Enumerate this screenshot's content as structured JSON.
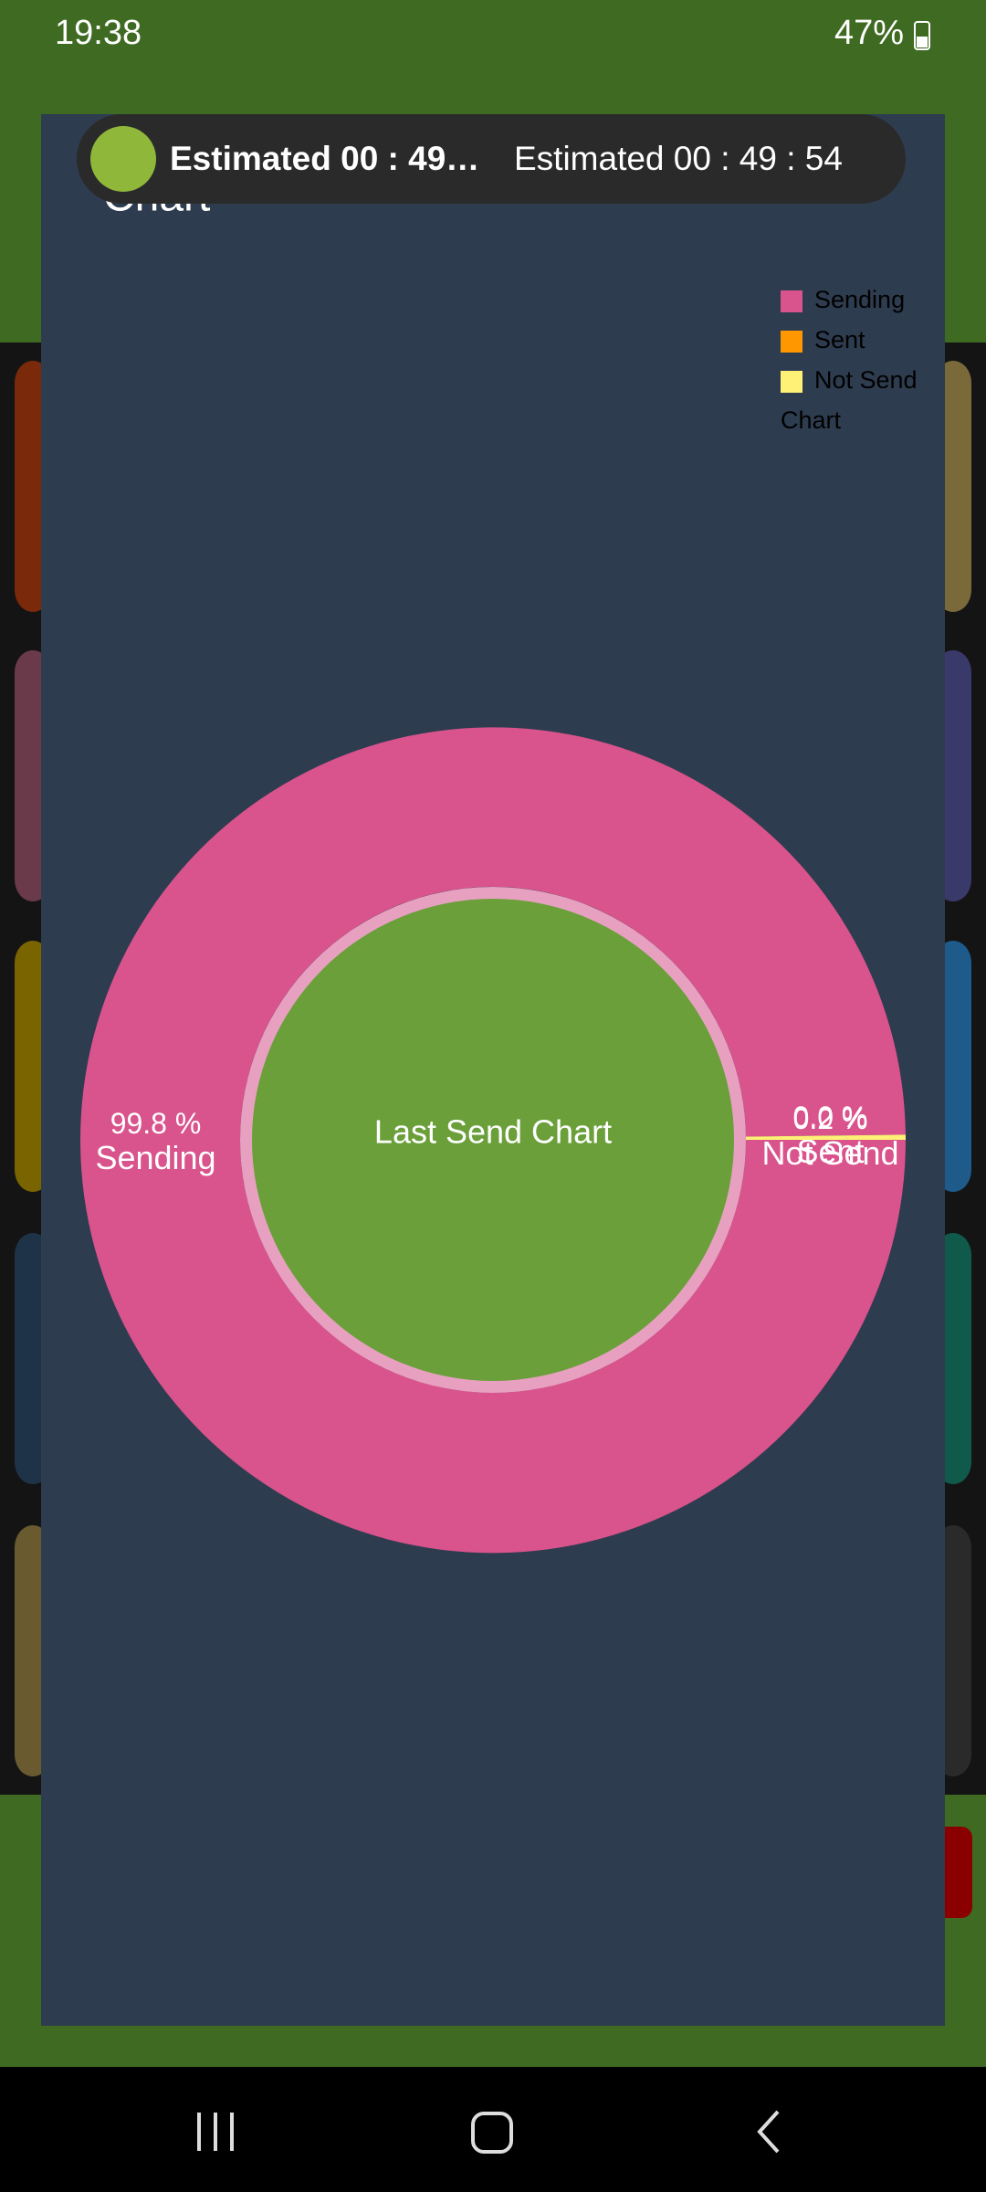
{
  "status_bar": {
    "time": "19:38",
    "battery": "47%"
  },
  "notification": {
    "title": "Estimated 00 : 49…",
    "text": "Estimated 00 : 49 : 54"
  },
  "dialog": {
    "title": "Chart"
  },
  "chart_data": {
    "type": "pie",
    "categories": [
      "Sending",
      "Sent",
      "Not Send"
    ],
    "values": [
      99.8,
      0.0,
      0.2
    ],
    "value_labels": [
      "99.8 %",
      "0.0 %",
      "0.2 %"
    ],
    "colors": [
      "#d9538c",
      "#ff9800",
      "#fff176"
    ],
    "legend_title": "Chart",
    "center_text": "Last Send Chart",
    "center_color": "#6a9f3a"
  }
}
